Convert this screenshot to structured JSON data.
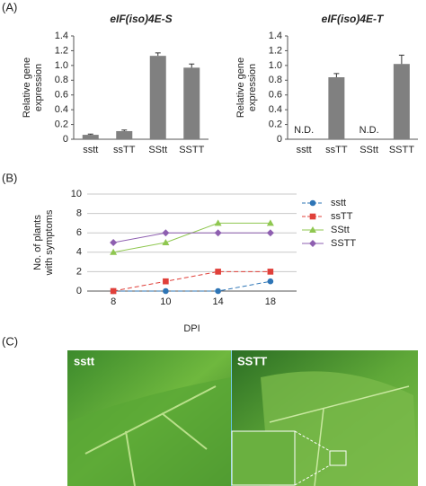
{
  "panel_labels": [
    "(A)",
    "(B)",
    "(C)"
  ],
  "chart_data": [
    {
      "type": "bar",
      "title": "eIF(iso)4E-S",
      "ylabel": [
        "Relative gene",
        "expression"
      ],
      "categories": [
        "sstt",
        "ssTT",
        "SStt",
        "SSTT"
      ],
      "values": [
        0.06,
        0.11,
        1.13,
        0.97
      ],
      "errors": [
        0.01,
        0.015,
        0.04,
        0.05
      ],
      "color": "#808080",
      "ylim": [
        0,
        1.4
      ],
      "yticks": [
        0,
        0.2,
        0.4,
        0.6,
        0.8,
        {
          "value": 1,
          "label": "1.0"
        },
        1.2,
        1.4
      ]
    },
    {
      "type": "bar",
      "title": "eIF(iso)4E-T",
      "ylabel": [
        "Relative gene",
        "expression"
      ],
      "categories": [
        "sstt",
        "ssTT",
        "SStt",
        "SSTT"
      ],
      "values": [
        null,
        0.84,
        null,
        1.02
      ],
      "errors": [
        null,
        0.05,
        null,
        0.12
      ],
      "value_labels": [
        "N.D.",
        null,
        "N.D.",
        null
      ],
      "color": "#808080",
      "ylim": [
        0,
        1.4
      ],
      "yticks": [
        0,
        0.2,
        0.4,
        0.6,
        0.8,
        {
          "value": 1,
          "label": "1.0"
        },
        1.2,
        1.4
      ]
    },
    {
      "type": "line",
      "xlabel": "DPI",
      "ylabel": [
        "No. of plants",
        "with symptoms"
      ],
      "categories": [
        "8",
        "10",
        "14",
        "18"
      ],
      "series": [
        {
          "name": "sstt",
          "color": "#2e75b6",
          "marker": "circle",
          "dash": true,
          "values": [
            0,
            0,
            0,
            1
          ]
        },
        {
          "name": "ssTT",
          "color": "#e0403a",
          "marker": "square",
          "dash": true,
          "values": [
            0,
            1,
            2,
            2
          ]
        },
        {
          "name": "SStt",
          "color": "#8fc750",
          "marker": "triangle",
          "dash": false,
          "values": [
            4,
            5,
            7,
            7
          ]
        },
        {
          "name": "SSTT",
          "color": "#8e5fb0",
          "marker": "diamond",
          "dash": false,
          "values": [
            5,
            6,
            6,
            6
          ]
        }
      ],
      "ylim": [
        0,
        10
      ],
      "yticks": [
        0,
        2,
        4,
        6,
        8,
        10
      ],
      "grid": true,
      "legend": "right"
    }
  ],
  "photo": {
    "labels": [
      "sstt",
      "SSTT"
    ]
  }
}
